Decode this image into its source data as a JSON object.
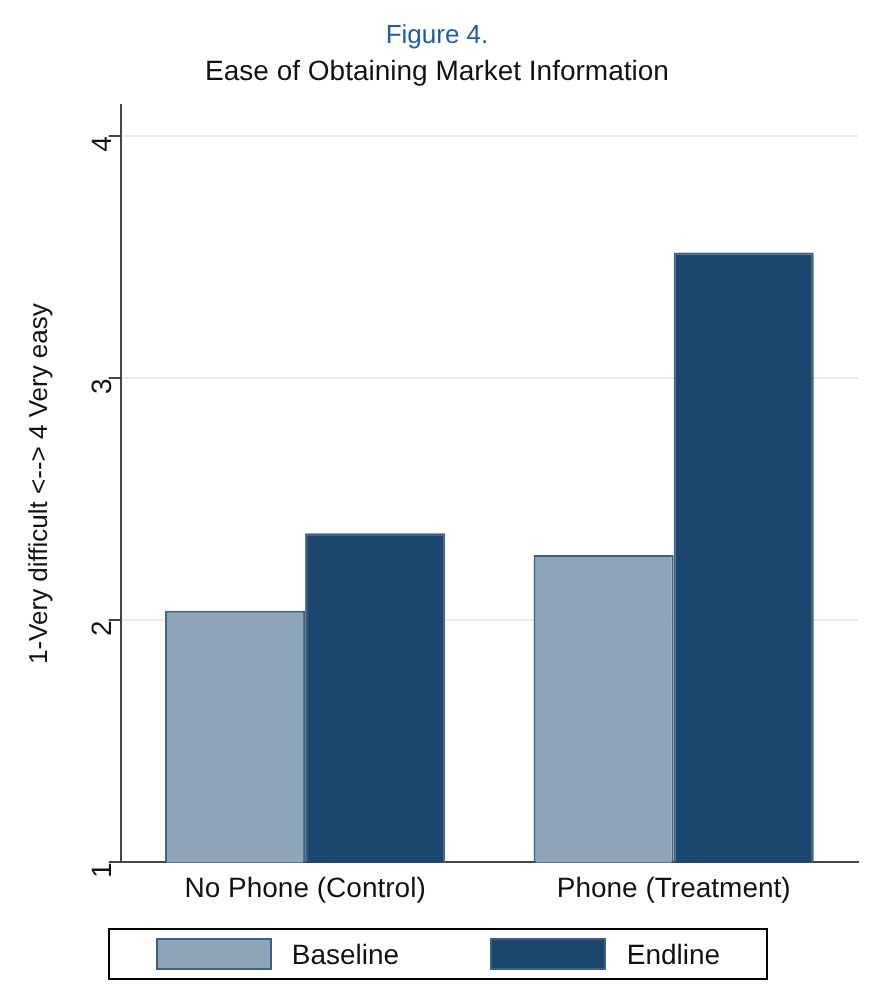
{
  "chart_data": {
    "type": "bar",
    "title": "Figure 4.",
    "subtitle": "Ease of Obtaining Market Information",
    "ylabel": "1-Very difficult <--> 4 Very easy",
    "categories": [
      "No Phone (Control)",
      "Phone (Treatment)"
    ],
    "series": [
      {
        "name": "Baseline",
        "color": "#8ea4b8",
        "values": [
          2.04,
          2.27
        ]
      },
      {
        "name": "Endline",
        "color": "#1b466e",
        "values": [
          2.36,
          3.52
        ]
      }
    ],
    "ylim": [
      1,
      4.13
    ],
    "yticks": [
      1,
      2,
      3,
      4
    ],
    "grid": "y",
    "legend": "bottom"
  }
}
